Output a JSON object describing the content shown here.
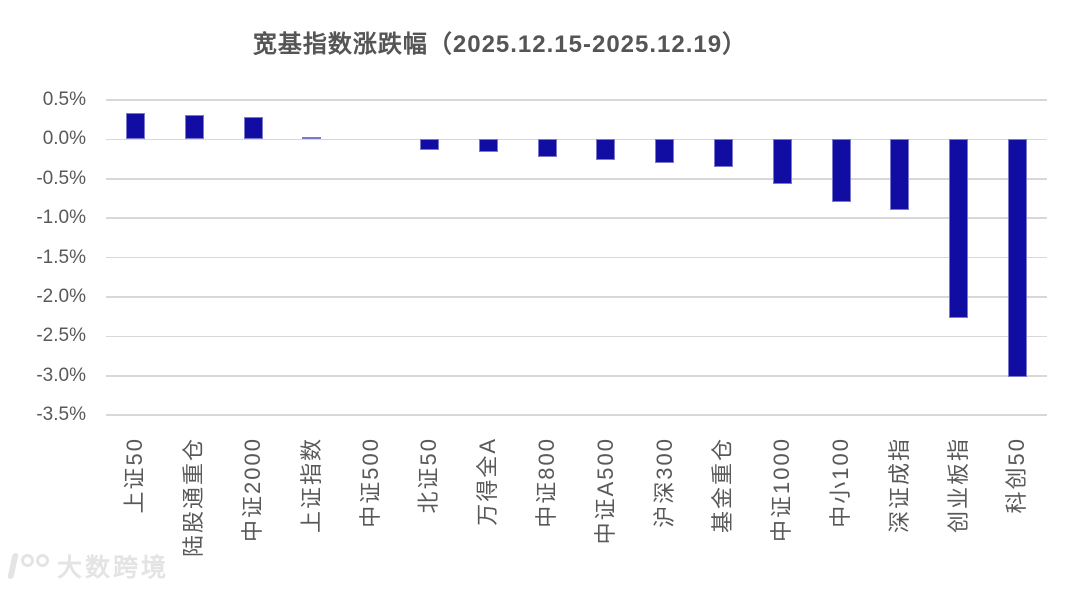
{
  "chart_data": {
    "type": "bar",
    "title": "宽基指数涨跌幅（2025.12.15-2025.12.19）",
    "xlabel": "",
    "ylabel": "",
    "unit": "%",
    "categories": [
      "上证50",
      "陆股通重仓",
      "中证2000",
      "上证指数",
      "中证500",
      "北证50",
      "万得全A",
      "中证800",
      "中证A500",
      "沪深300",
      "基金重仓",
      "中证1000",
      "中小100",
      "深证成指",
      "创业板指",
      "科创50"
    ],
    "values": [
      0.33,
      0.31,
      0.29,
      0.03,
      0.0,
      -0.13,
      -0.16,
      -0.22,
      -0.26,
      -0.3,
      -0.35,
      -0.56,
      -0.8,
      -0.9,
      -2.27,
      -3.01
    ],
    "ylim": [
      -3.5,
      0.5
    ],
    "ytick_labels": [
      "0.5%",
      "0.0%",
      "-0.5%",
      "-1.0%",
      "-1.5%",
      "-2.0%",
      "-2.5%",
      "-3.0%",
      "-3.5%"
    ],
    "grid": true,
    "legend_position": "none",
    "bar_color": "#110da3",
    "bar_border_color": "#7b79ce",
    "gridline_color": "#d8d8d8",
    "axis_text_color": "#595959",
    "title_color": "#555555"
  },
  "watermark": {
    "text": "大数跨境",
    "color": "#e4e4e4"
  }
}
